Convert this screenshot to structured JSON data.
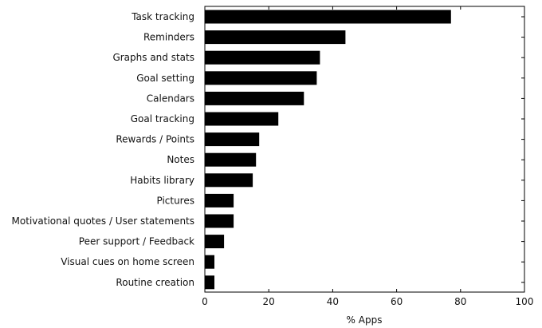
{
  "chart_data": {
    "type": "bar",
    "orientation": "horizontal",
    "title": "",
    "xlabel": "% Apps",
    "ylabel": "",
    "xlim": [
      0,
      100
    ],
    "x_ticks": [
      0,
      20,
      40,
      60,
      80,
      100
    ],
    "grid": false,
    "legend": "none",
    "bar_color": "#000000",
    "categories": [
      "Task tracking",
      "Reminders",
      "Graphs and stats",
      "Goal setting",
      "Calendars",
      "Goal tracking",
      "Rewards / Points",
      "Notes",
      "Habits library",
      "Pictures",
      "Motivational quotes / User statements",
      "Peer support / Feedback",
      "Visual cues on home screen",
      "Routine creation"
    ],
    "values": [
      77,
      44,
      36,
      35,
      31,
      23,
      17,
      16,
      15,
      9,
      9,
      6,
      3,
      3
    ]
  }
}
